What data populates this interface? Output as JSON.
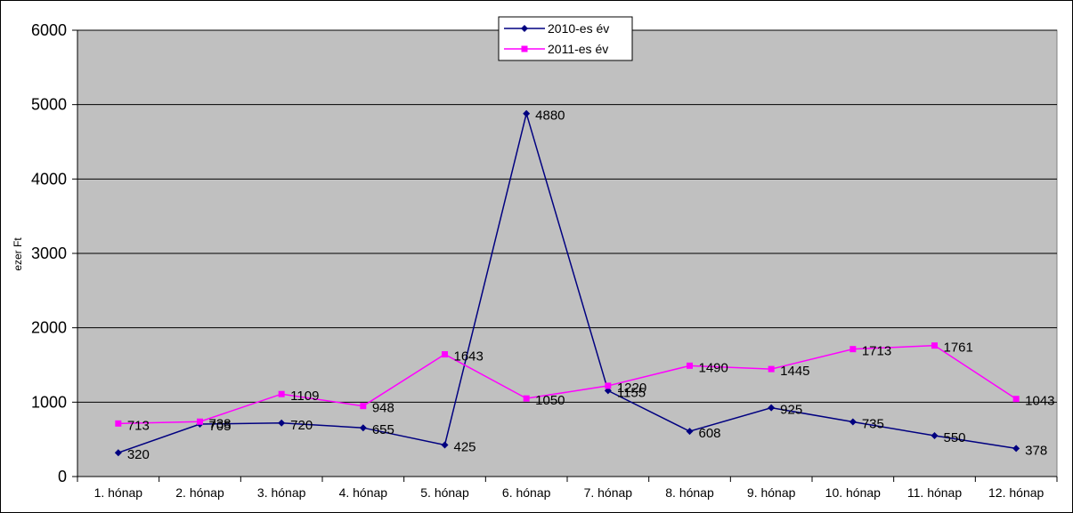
{
  "chart_data": {
    "type": "line",
    "title": "",
    "xlabel": "",
    "ylabel": "ezer Ft",
    "ylim": [
      0,
      6000
    ],
    "yticks": [
      0,
      1000,
      2000,
      3000,
      4000,
      5000,
      6000
    ],
    "grid": true,
    "legend_position": "top-center",
    "plot_background": "#c0c0c0",
    "categories": [
      "1. hónap",
      "2. hónap",
      "3. hónap",
      "4. hónap",
      "5. hónap",
      "6. hónap",
      "7. hónap",
      "8. hónap",
      "9. hónap",
      "10. hónap",
      "11. hónap",
      "12. hónap"
    ],
    "series": [
      {
        "name": "2010-es év",
        "color": "#000080",
        "marker": "diamond",
        "values": [
          320,
          705,
          720,
          655,
          425,
          4880,
          1155,
          608,
          925,
          735,
          550,
          378
        ]
      },
      {
        "name": "2011-es év",
        "color": "#ff00ff",
        "marker": "square",
        "values": [
          713,
          738,
          1109,
          948,
          1643,
          1050,
          1220,
          1490,
          1445,
          1713,
          1761,
          1043
        ]
      }
    ]
  }
}
